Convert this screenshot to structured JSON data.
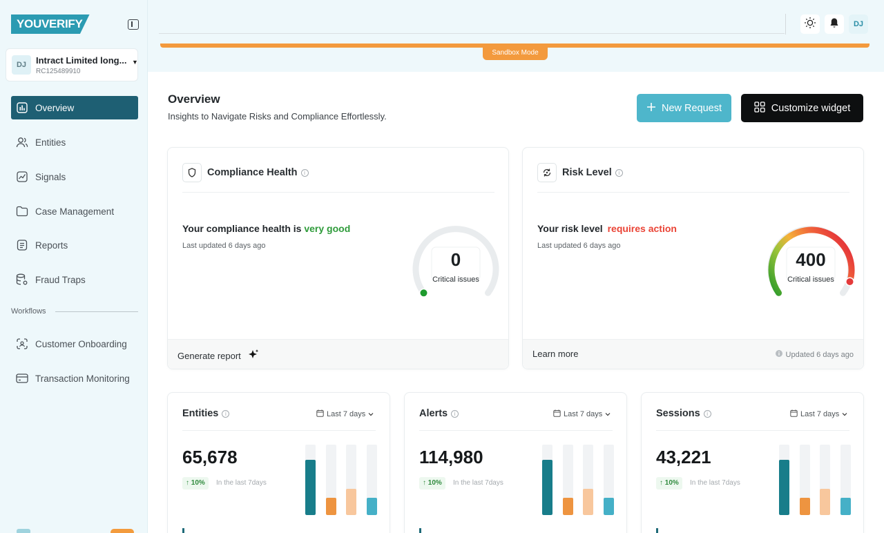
{
  "brand": {
    "logo_text": "YOUVERIFY"
  },
  "org": {
    "avatar": "DJ",
    "name": "Intract Limited long...",
    "id": "RC125489910"
  },
  "nav": {
    "items": [
      {
        "label": "Overview",
        "icon": "bar-chart-icon",
        "active": true
      },
      {
        "label": "Entities",
        "icon": "users-icon"
      },
      {
        "label": "Signals",
        "icon": "signal-chart-icon"
      },
      {
        "label": "Case Management",
        "icon": "folder-icon"
      },
      {
        "label": "Reports",
        "icon": "report-icon"
      },
      {
        "label": "Fraud Traps",
        "icon": "database-gear-icon"
      }
    ],
    "section_label": "Workflows",
    "workflow_items": [
      {
        "label": "Customer Onboarding",
        "icon": "face-scan-icon"
      },
      {
        "label": "Transaction Monitoring",
        "icon": "credit-card-icon"
      }
    ]
  },
  "header": {
    "user_initials": "DJ",
    "sandbox_label": "Sandbox Mode"
  },
  "page": {
    "title": "Overview",
    "subtitle": "Insights to Navigate Risks and Compliance Effortlessly.",
    "new_request_label": "New Request",
    "customize_label": "Customize widget"
  },
  "compliance": {
    "title": "Compliance Health",
    "status_prefix": "Your compliance health is",
    "status_value": "very good",
    "status_color": "#2e9b3a",
    "updated": "Last updated 6 days ago",
    "critical_value": "0",
    "critical_label": "Critical issues",
    "footer_label": "Generate report"
  },
  "risk": {
    "title": "Risk Level",
    "status_prefix": "Your risk level",
    "status_value": "requires action",
    "status_color": "#ea4335",
    "updated": "Last updated 6 days ago",
    "critical_value": "400",
    "critical_label": "Critical issues",
    "footer_label": "Learn more",
    "footer_updated": "Updated 6 days ago"
  },
  "stats": [
    {
      "title": "Entities",
      "range": "Last 7 days",
      "value": "65,678",
      "trend": "10%",
      "trend_note": "In the last 7days",
      "bars": [
        0.78,
        0.25,
        0.37,
        0.25
      ]
    },
    {
      "title": "Alerts",
      "range": "Last 7 days",
      "value": "114,980",
      "trend": "10%",
      "trend_note": "In the last 7days",
      "bars": [
        0.78,
        0.25,
        0.37,
        0.25
      ]
    },
    {
      "title": "Sessions",
      "range": "Last 7 days",
      "value": "43,221",
      "trend": "10%",
      "trend_note": "In the last 7days",
      "bars": [
        0.78,
        0.25,
        0.37,
        0.25
      ]
    }
  ],
  "colors": {
    "accent": "#1e5f73",
    "sandbox": "#f39a3d",
    "bar_colors": [
      "#187d8a",
      "#ee9440",
      "#f8c79d",
      "#45b0c7"
    ]
  }
}
